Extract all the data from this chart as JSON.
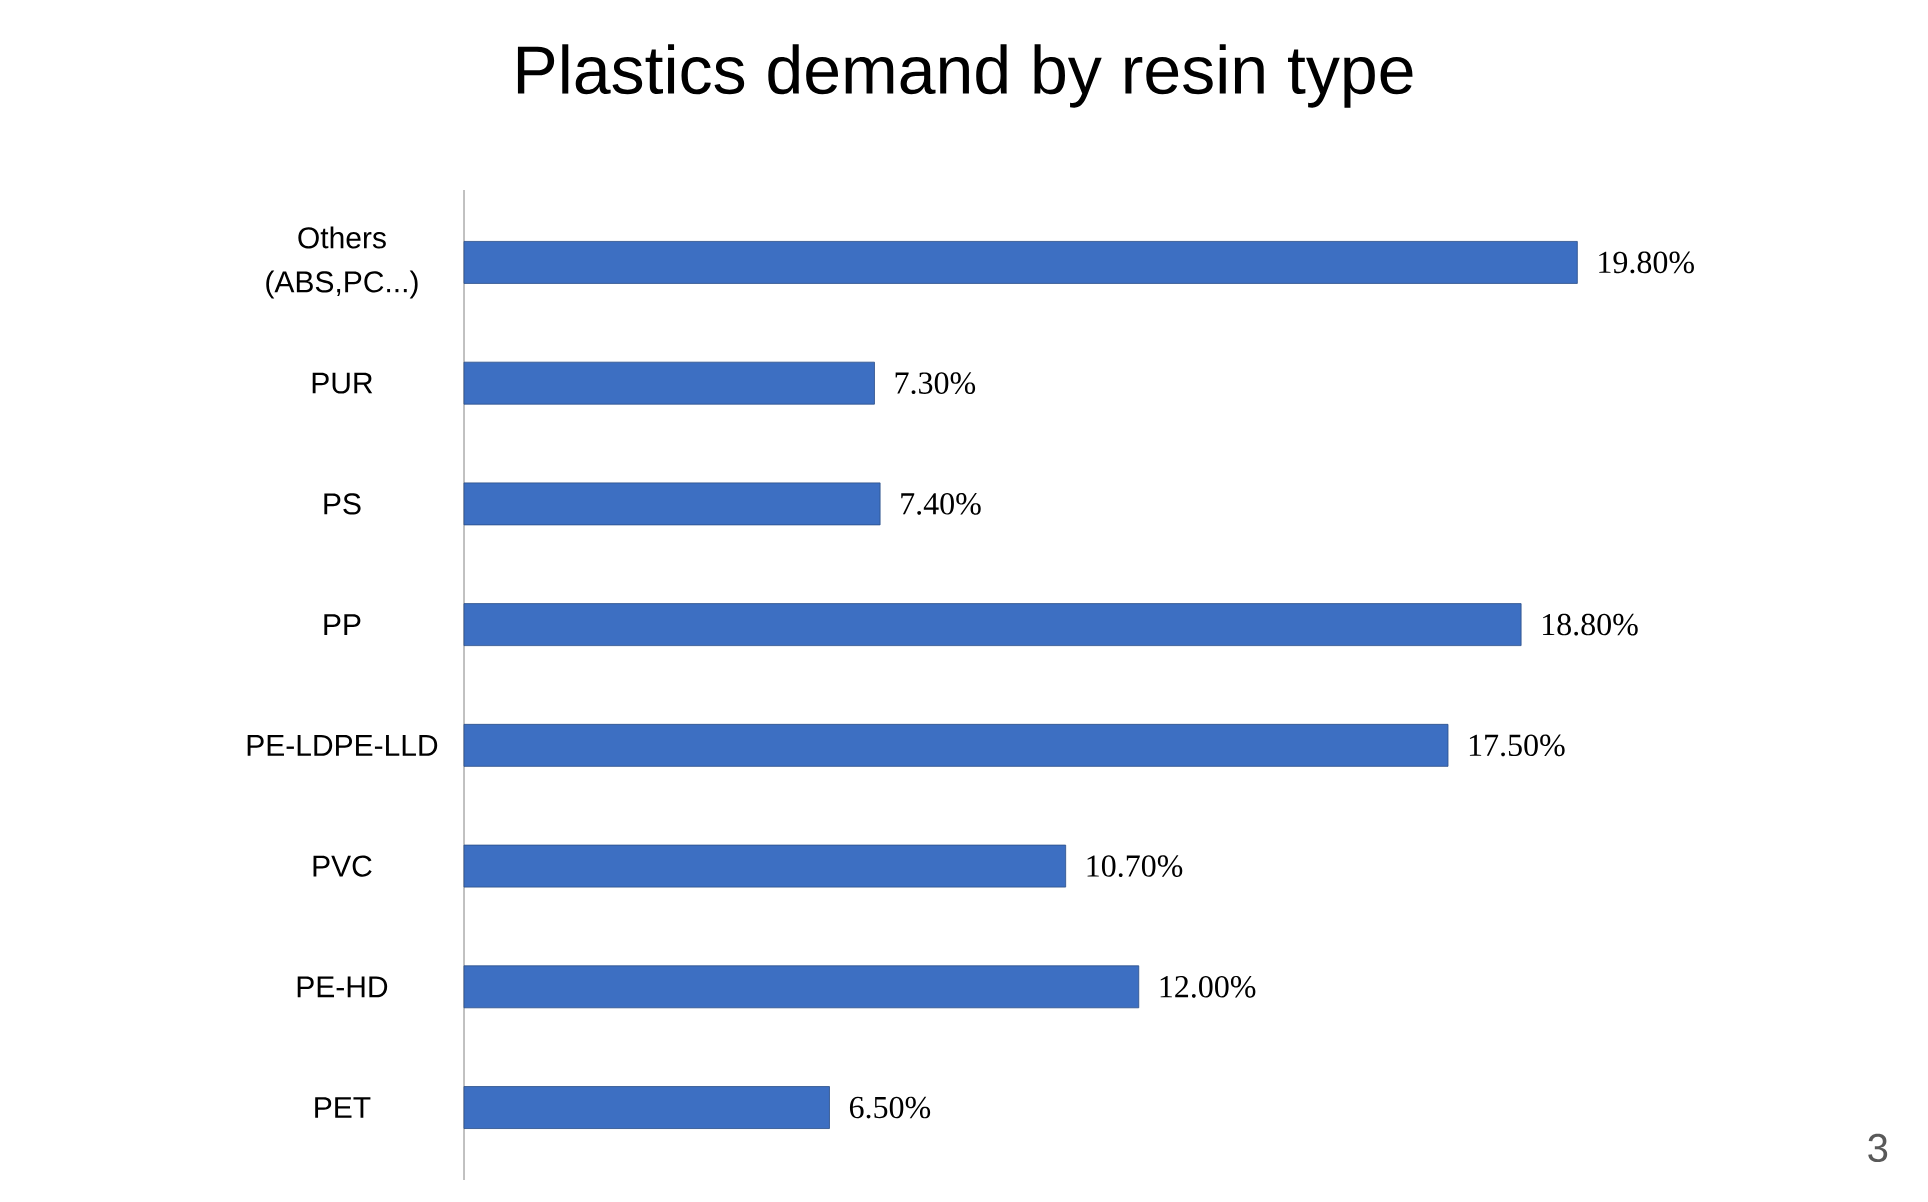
{
  "chart_data": {
    "type": "bar",
    "orientation": "horizontal",
    "title": "Plastics demand by resin type",
    "categories": [
      "Others (ABS,PC...)",
      "PUR",
      "PS",
      "PP",
      "PE-LDPE-LLD",
      "PVC",
      "PE-HD",
      "PET"
    ],
    "values": [
      19.8,
      7.3,
      7.4,
      18.8,
      17.5,
      10.7,
      12.0,
      6.5
    ],
    "value_labels": [
      "19.80%",
      "7.30%",
      "7.40%",
      "18.80%",
      "17.50%",
      "10.70%",
      "12.00%",
      "6.50%"
    ],
    "color": "#3d6fc2",
    "annotations": [
      "3"
    ]
  }
}
